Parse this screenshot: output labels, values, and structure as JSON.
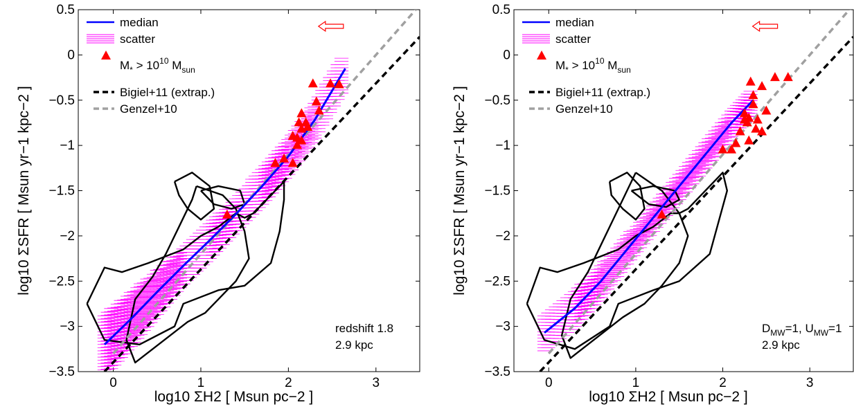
{
  "chart_data": [
    {
      "type": "line",
      "xlabel": "log10 ΣH2 [ Msun pc−2 ]",
      "ylabel": "log10 ΣSFR [ Msun yr−1 kpc−2 ]",
      "xlim": [
        -0.4,
        3.5
      ],
      "ylim": [
        -3.5,
        0.5
      ],
      "xticks": [
        0,
        1,
        2,
        3
      ],
      "yticks": [
        -3.5,
        -3,
        -2.5,
        -2,
        -1.5,
        -1,
        -0.5,
        0,
        0.5
      ],
      "legend": {
        "placement": "top-left",
        "median": "median",
        "scatter": "scatter",
        "massive_prefix": "M",
        "massive_sub": "*",
        "massive_mid": " > 10",
        "massive_sup": "10",
        "massive_unit": " M",
        "massive_unit_sub": "sun",
        "bigiel": "Bigiel+11 (extrap.)",
        "genzel": "Genzel+10"
      },
      "annotation": {
        "line1": "redshift 1.8",
        "line2": "2.9 kpc"
      },
      "median_x": [
        -0.1,
        0.2,
        0.5,
        0.8,
        1.1,
        1.4,
        1.7,
        2.0,
        2.3,
        2.65
      ],
      "median_y": [
        -3.2,
        -2.92,
        -2.62,
        -2.33,
        -2.05,
        -1.76,
        -1.45,
        -1.12,
        -0.72,
        -0.15
      ],
      "scatter_halfwidth": [
        0.35,
        0.3,
        0.25,
        0.2,
        0.2,
        0.18,
        0.2,
        0.2,
        0.2,
        0.2
      ],
      "bigiel_line": {
        "x": [
          -0.1,
          3.5
        ],
        "y": [
          -3.5,
          0.2
        ]
      },
      "genzel_line": {
        "x": [
          0.0,
          3.5
        ],
        "y": [
          -3.3,
          0.55
        ]
      },
      "massive_galaxies": {
        "x": [
          1.3,
          1.85,
          1.95,
          2.05,
          2.1,
          2.1,
          2.12,
          2.15,
          2.15,
          2.2,
          2.22,
          2.15,
          2.28,
          2.32,
          2.35,
          2.48,
          2.58,
          2.05
        ],
        "y": [
          -1.77,
          -1.2,
          -1.15,
          -1.2,
          -1.0,
          -0.92,
          -0.75,
          -0.65,
          -0.82,
          -0.75,
          -0.8,
          -0.95,
          -0.32,
          -0.52,
          -0.62,
          -0.32,
          -0.33,
          -0.9
        ]
      },
      "contours": [
        {
          "x": [
            0.95,
            1.25,
            1.4,
            1.5,
            1.55,
            1.4,
            1.2,
            1.05,
            0.85,
            0.65,
            0.45,
            0.25,
            0.15,
            0.25,
            0.45,
            0.6,
            0.75,
            0.9,
            0.95
          ],
          "y": [
            -1.45,
            -1.55,
            -1.7,
            -1.95,
            -2.25,
            -2.5,
            -2.7,
            -2.85,
            -2.95,
            -3.1,
            -3.25,
            -3.4,
            -3.15,
            -2.7,
            -2.45,
            -2.2,
            -1.9,
            -1.6,
            -1.45
          ]
        },
        {
          "x": [
            -0.3,
            -0.1,
            0.3,
            0.7,
            0.8,
            1.2,
            1.5,
            1.8,
            1.9,
            1.95,
            1.95,
            1.75,
            1.6,
            1.5,
            1.4,
            1.2,
            1.0,
            0.8,
            0.4,
            0.1,
            -0.1,
            -0.3
          ],
          "y": [
            -2.75,
            -3.15,
            -3.2,
            -3.0,
            -2.75,
            -2.6,
            -2.55,
            -2.3,
            -1.95,
            -1.6,
            -1.4,
            -1.6,
            -1.75,
            -1.8,
            -1.75,
            -1.9,
            -2.0,
            -2.15,
            -2.3,
            -2.4,
            -2.35,
            -2.75
          ]
        },
        {
          "x": [
            0.7,
            0.9,
            1.1,
            1.15,
            1.0,
            0.85,
            0.75,
            0.7
          ],
          "y": [
            -1.4,
            -1.3,
            -1.45,
            -1.7,
            -1.82,
            -1.7,
            -1.55,
            -1.4
          ]
        },
        {
          "x": [
            1.0,
            1.2,
            1.45,
            1.5,
            1.35,
            1.15,
            1.0
          ],
          "y": [
            -1.5,
            -1.45,
            -1.5,
            -1.65,
            -1.7,
            -1.65,
            -1.5
          ]
        }
      ]
    },
    {
      "type": "line",
      "xlabel": "log10 ΣH2 [ Msun pc−2 ]",
      "ylabel": "log10 ΣSFR [ Msun yr−1 kpc−2 ]",
      "xlim": [
        -0.4,
        3.5
      ],
      "ylim": [
        -3.5,
        0.5
      ],
      "xticks": [
        0,
        1,
        2,
        3
      ],
      "yticks": [
        -3.5,
        -3,
        -2.5,
        -2,
        -1.5,
        -1,
        -0.5,
        0,
        0.5
      ],
      "legend": {
        "placement": "top-left",
        "median": "median",
        "scatter": "scatter",
        "massive_prefix": "M",
        "massive_sub": "*",
        "massive_mid": " > 10",
        "massive_sup": "10",
        "massive_unit": " M",
        "massive_unit_sub": "sun",
        "bigiel": "Bigiel+11 (extrap.)",
        "genzel": "Genzel+10"
      },
      "annotation": {
        "line1_main": "D",
        "line1_sub": "MW",
        "line1_mid": "=1, U",
        "line1_sub2": "MW",
        "line1_end": "=1",
        "line2": "2.9 kpc"
      },
      "median_x": [
        -0.05,
        0.3,
        0.6,
        0.9,
        1.2,
        1.5,
        1.8,
        2.1,
        2.35
      ],
      "median_y": [
        -3.07,
        -2.8,
        -2.5,
        -2.15,
        -1.8,
        -1.45,
        -1.1,
        -0.75,
        -0.5
      ],
      "scatter_halfwidth": [
        0.2,
        0.2,
        0.18,
        0.16,
        0.15,
        0.15,
        0.15,
        0.15,
        0.15
      ],
      "bigiel_line": {
        "x": [
          -0.1,
          3.5
        ],
        "y": [
          -3.5,
          0.2
        ]
      },
      "genzel_line": {
        "x": [
          0.0,
          3.5
        ],
        "y": [
          -3.3,
          0.55
        ]
      },
      "massive_galaxies": {
        "x": [
          1.3,
          2.0,
          2.1,
          2.15,
          2.2,
          2.25,
          2.28,
          2.3,
          2.32,
          2.35,
          2.38,
          2.4,
          2.45,
          2.5,
          2.45,
          2.35,
          2.6,
          2.75,
          2.3,
          2.25
        ],
        "y": [
          -1.77,
          -1.05,
          -1.05,
          -0.98,
          -0.85,
          -0.65,
          -0.75,
          -0.7,
          -0.3,
          -0.45,
          -0.82,
          -0.72,
          -0.35,
          -0.62,
          -0.85,
          -0.55,
          -0.25,
          -0.25,
          -0.95,
          -0.72
        ]
      },
      "contours": [
        {
          "x": [
            1.0,
            1.3,
            1.5,
            1.6,
            1.5,
            1.3,
            1.1,
            0.85,
            0.65,
            0.45,
            0.25,
            0.15,
            0.25,
            0.45,
            0.6,
            0.75,
            0.9,
            1.0
          ],
          "y": [
            -1.3,
            -1.5,
            -1.75,
            -2.0,
            -2.3,
            -2.55,
            -2.75,
            -2.9,
            -3.05,
            -3.2,
            -3.35,
            -3.1,
            -2.7,
            -2.4,
            -2.1,
            -1.8,
            -1.5,
            -1.3
          ]
        },
        {
          "x": [
            -0.25,
            -0.05,
            0.3,
            0.7,
            0.8,
            1.2,
            1.5,
            1.85,
            1.95,
            2.05,
            2.0,
            1.8,
            1.6,
            1.5,
            1.4,
            1.2,
            1.0,
            0.8,
            0.4,
            0.1,
            -0.1,
            -0.25
          ],
          "y": [
            -2.75,
            -3.15,
            -3.25,
            -3.0,
            -2.75,
            -2.6,
            -2.5,
            -2.2,
            -1.85,
            -1.5,
            -1.3,
            -1.5,
            -1.7,
            -1.75,
            -1.75,
            -1.9,
            -2.0,
            -2.15,
            -2.3,
            -2.4,
            -2.35,
            -2.75
          ]
        },
        {
          "x": [
            0.7,
            0.9,
            1.05,
            1.1,
            1.0,
            0.85,
            0.72,
            0.7
          ],
          "y": [
            -1.4,
            -1.3,
            -1.45,
            -1.7,
            -1.82,
            -1.7,
            -1.55,
            -1.4
          ]
        },
        {
          "x": [
            0.95,
            1.2,
            1.45,
            1.5,
            1.35,
            1.15,
            0.95
          ],
          "y": [
            -1.5,
            -1.45,
            -1.5,
            -1.6,
            -1.68,
            -1.65,
            -1.5
          ]
        }
      ]
    }
  ],
  "colors": {
    "median": "#0000ff",
    "scatter": "#ff00ff",
    "triangles": "#ff0000",
    "bigiel": "#000000",
    "genzel": "#a0a0a0",
    "contour": "#000000",
    "arrow": "#ff0000"
  },
  "icons": {
    "direction_arrow": "left-arrow-icon"
  }
}
